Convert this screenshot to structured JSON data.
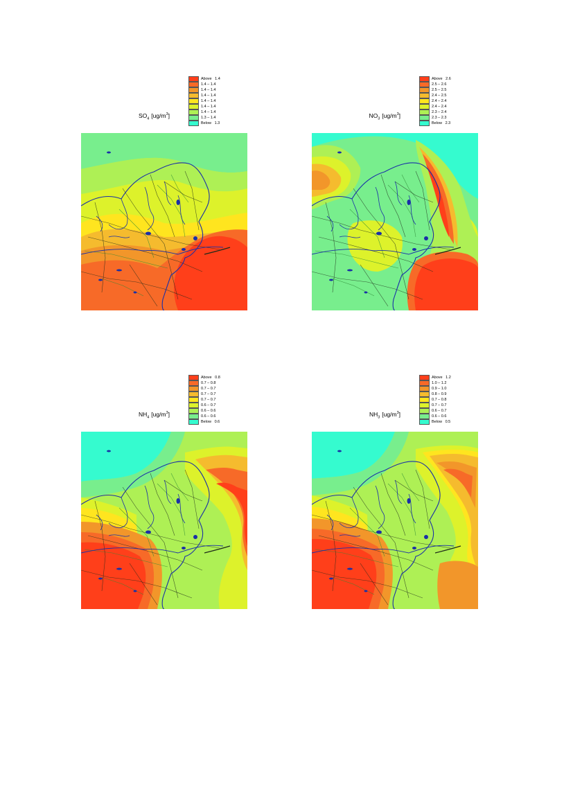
{
  "panels": [
    {
      "species": "SO",
      "subscript": "4",
      "unit_prefix": "[ug/m",
      "unit_sup": "3",
      "unit_suffix": "]",
      "legend": [
        "Above   1.4",
        "1.4 – 1.4",
        "1.4 – 1.4",
        "1.4 – 1.4",
        "1.4 – 1.4",
        "1.4 – 1.4",
        "1.4 – 1.4",
        "1.3 – 1.4",
        "Below   1.3"
      ],
      "map_style": "so4"
    },
    {
      "species": "NO",
      "subscript": "3",
      "unit_prefix": "[ug/m",
      "unit_sup": "3",
      "unit_suffix": "]",
      "legend": [
        "Above   2.6",
        "2.5 – 2.6",
        "2.5 – 2.5",
        "2.4 – 2.5",
        "2.4 – 2.4",
        "2.4 – 2.4",
        "2.3 – 2.4",
        "2.3 – 2.3",
        "Below   2.3"
      ],
      "map_style": "no3"
    },
    {
      "species": "NH",
      "subscript": "4",
      "unit_prefix": "[ug/m",
      "unit_sup": "3",
      "unit_suffix": "]",
      "legend": [
        "Above   0.8",
        "0.7 – 0.8",
        "0.7 – 0.7",
        "0.7 – 0.7",
        "0.7 – 0.7",
        "0.6 – 0.7",
        "0.6 – 0.6",
        "0.6 – 0.6",
        "Below   0.6"
      ],
      "map_style": "nh4"
    },
    {
      "species": "NH",
      "subscript": "3",
      "unit_prefix": "[ug/m",
      "unit_sup": "3",
      "unit_suffix": "]",
      "legend": [
        "Above   1.2",
        "1.0 – 1.2",
        "0.9 – 1.0",
        "0.8 – 0.9",
        "0.7 – 0.8",
        "0.7 – 0.7",
        "0.6 – 0.7",
        "0.6 – 0.6",
        "Below   0.5"
      ],
      "map_style": "nh3"
    }
  ],
  "colors": {
    "scale": [
      "#ff3f1a",
      "#f76a28",
      "#f2962a",
      "#f5bb2e",
      "#ffe51f",
      "#ddf22b",
      "#aef055",
      "#78ee8d",
      "#35fbcf"
    ],
    "coast": "#1a2fa8",
    "roads": "#1d2b1a",
    "green_roads": "#2c8a35"
  }
}
